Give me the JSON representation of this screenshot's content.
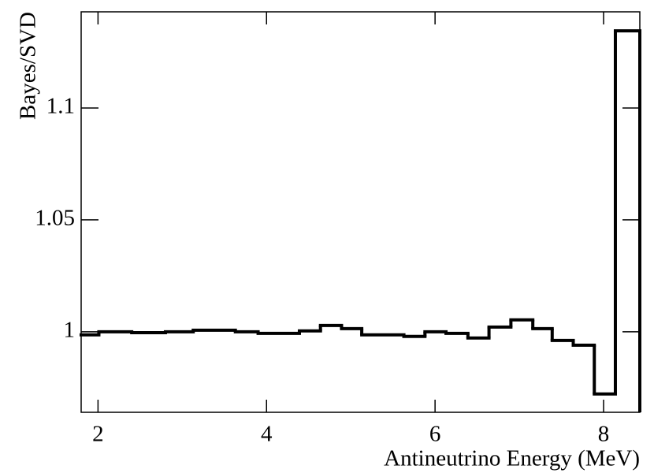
{
  "chart_data": {
    "type": "histogram",
    "xlabel": "Antineutrino Energy (MeV)",
    "ylabel": "Bayes/SVD",
    "bins": [
      1.8,
      2.01,
      2.4,
      2.8,
      3.13,
      3.63,
      3.9,
      4.39,
      4.64,
      4.89,
      5.13,
      5.63,
      5.88,
      6.13,
      6.39,
      6.64,
      6.9,
      7.16,
      7.39,
      7.64,
      7.89,
      8.14,
      8.43
    ],
    "values": [
      0.9986,
      1.0,
      0.9996,
      1.0,
      1.0007,
      1.0,
      0.9993,
      1.0004,
      1.0028,
      1.0014,
      0.9986,
      0.9979,
      1.0,
      0.9993,
      0.9972,
      1.0021,
      1.0053,
      1.0014,
      0.9961,
      0.994,
      0.9722,
      1.1345
    ],
    "color": "#000000",
    "xlim": [
      1.8,
      8.43
    ],
    "xticks": [
      2,
      4,
      6,
      8
    ],
    "ylim": [
      0.964,
      1.143
    ],
    "yticks": [
      1,
      1.05,
      1.1
    ]
  }
}
